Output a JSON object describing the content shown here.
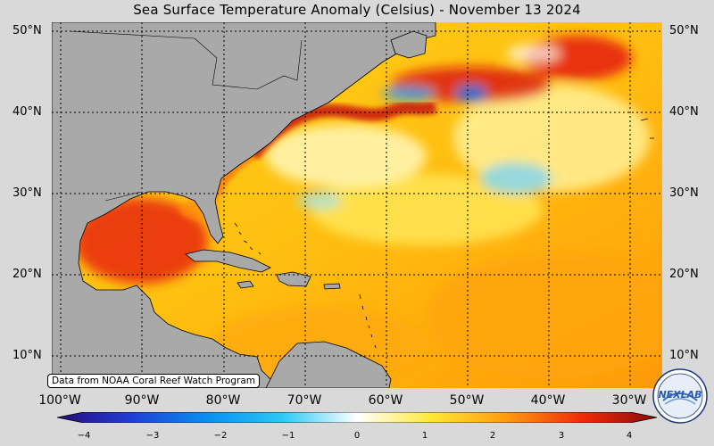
{
  "title": "Sea Surface Temperature Anomaly (Celsius) - November 13 2024",
  "credit": "Data from NOAA Coral Reef Watch Program",
  "logo_text": "NEXLAB",
  "lat_labels": [
    "50°N",
    "40°N",
    "30°N",
    "20°N",
    "10°N"
  ],
  "lon_labels": [
    "100°W",
    "90°W",
    "80°W",
    "70°W",
    "60°W",
    "50°W",
    "40°W",
    "30°W"
  ],
  "colorbar": {
    "ticks": [
      "−4",
      "−3",
      "−2",
      "−1",
      "0",
      "1",
      "2",
      "3",
      "4"
    ],
    "min": -4,
    "max": 4,
    "colors": [
      "#2a0a7a",
      "#1f3fd6",
      "#0a8ff0",
      "#29c9f5",
      "#ffffff",
      "#ffe733",
      "#ff9a10",
      "#f22a0a",
      "#8a0a0a"
    ]
  },
  "colors": {
    "land": "#a9a9a9",
    "background": "#d9d9d9"
  }
}
